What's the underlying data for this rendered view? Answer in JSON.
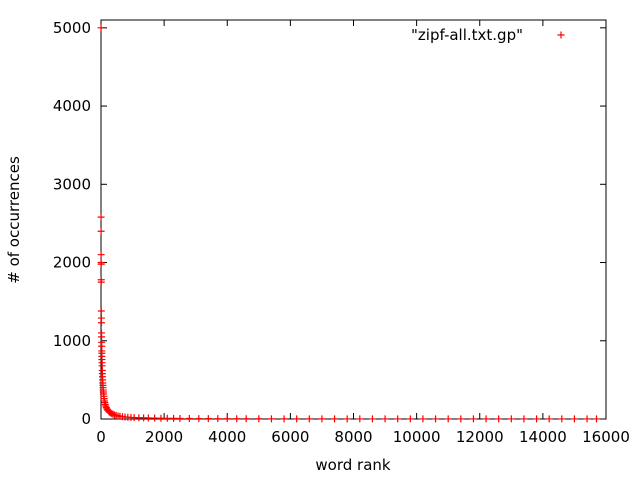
{
  "chart_data": {
    "type": "scatter",
    "title": "",
    "xlabel": "word rank",
    "ylabel": "# of occurrences",
    "xlim": [
      0,
      16000
    ],
    "ylim": [
      0,
      5100
    ],
    "xticks": [
      0,
      2000,
      4000,
      6000,
      8000,
      10000,
      12000,
      14000,
      16000
    ],
    "xtick_labels": [
      "0",
      "2000",
      "4000",
      "6000",
      "8000",
      "10000",
      "12000",
      "14000",
      "16000"
    ],
    "yticks": [
      0,
      1000,
      2000,
      3000,
      4000,
      5000
    ],
    "ytick_labels": [
      "0",
      "1000",
      "2000",
      "3000",
      "4000",
      "5000"
    ],
    "grid": false,
    "legend_position": "top-right",
    "series": [
      {
        "name": "\"zipf-all.txt.gp\"",
        "color": "#ff0000",
        "marker": "plus",
        "points": [
          [
            1,
            5000
          ],
          [
            2,
            2580
          ],
          [
            3,
            2400
          ],
          [
            4,
            2100
          ],
          [
            5,
            2000
          ],
          [
            6,
            1980
          ],
          [
            7,
            1780
          ],
          [
            8,
            1750
          ],
          [
            10,
            1380
          ],
          [
            12,
            1290
          ],
          [
            14,
            1230
          ],
          [
            16,
            1100
          ],
          [
            18,
            1050
          ],
          [
            20,
            980
          ],
          [
            22,
            930
          ],
          [
            24,
            870
          ],
          [
            26,
            840
          ],
          [
            28,
            800
          ],
          [
            30,
            760
          ],
          [
            33,
            720
          ],
          [
            36,
            680
          ],
          [
            40,
            620
          ],
          [
            44,
            580
          ],
          [
            48,
            540
          ],
          [
            52,
            500
          ],
          [
            56,
            460
          ],
          [
            60,
            430
          ],
          [
            65,
            400
          ],
          [
            70,
            370
          ],
          [
            75,
            345
          ],
          [
            80,
            320
          ],
          [
            90,
            290
          ],
          [
            100,
            260
          ],
          [
            110,
            230
          ],
          [
            120,
            210
          ],
          [
            135,
            185
          ],
          [
            150,
            165
          ],
          [
            170,
            145
          ],
          [
            190,
            128
          ],
          [
            210,
            115
          ],
          [
            240,
            100
          ],
          [
            270,
            88
          ],
          [
            300,
            78
          ],
          [
            340,
            68
          ],
          [
            380,
            60
          ],
          [
            430,
            52
          ],
          [
            480,
            46
          ],
          [
            540,
            40
          ],
          [
            600,
            35
          ],
          [
            680,
            30
          ],
          [
            760,
            26
          ],
          [
            850,
            23
          ],
          [
            950,
            20
          ],
          [
            1050,
            18
          ],
          [
            1200,
            16
          ],
          [
            1350,
            14
          ],
          [
            1500,
            13
          ],
          [
            1700,
            12
          ],
          [
            1900,
            10
          ],
          [
            2100,
            9
          ],
          [
            2300,
            8
          ],
          [
            2500,
            7
          ],
          [
            2800,
            6
          ],
          [
            3100,
            5
          ],
          [
            3400,
            5
          ],
          [
            3700,
            4
          ],
          [
            4000,
            4
          ],
          [
            4300,
            3
          ],
          [
            4600,
            3
          ],
          [
            5000,
            3
          ],
          [
            5400,
            2
          ],
          [
            5800,
            2
          ],
          [
            6200,
            2
          ],
          [
            6600,
            2
          ],
          [
            7000,
            2
          ],
          [
            7400,
            2
          ],
          [
            7800,
            1
          ],
          [
            8200,
            1
          ],
          [
            8600,
            1
          ],
          [
            9000,
            1
          ],
          [
            9400,
            1
          ],
          [
            9800,
            1
          ],
          [
            10200,
            1
          ],
          [
            10600,
            1
          ],
          [
            11000,
            1
          ],
          [
            11400,
            1
          ],
          [
            11800,
            1
          ],
          [
            12200,
            1
          ],
          [
            12600,
            1
          ],
          [
            13000,
            1
          ],
          [
            13400,
            1
          ],
          [
            13800,
            1
          ],
          [
            14200,
            1
          ],
          [
            14600,
            1
          ],
          [
            15000,
            1
          ],
          [
            15400,
            1
          ],
          [
            15700,
            1
          ]
        ]
      }
    ]
  }
}
